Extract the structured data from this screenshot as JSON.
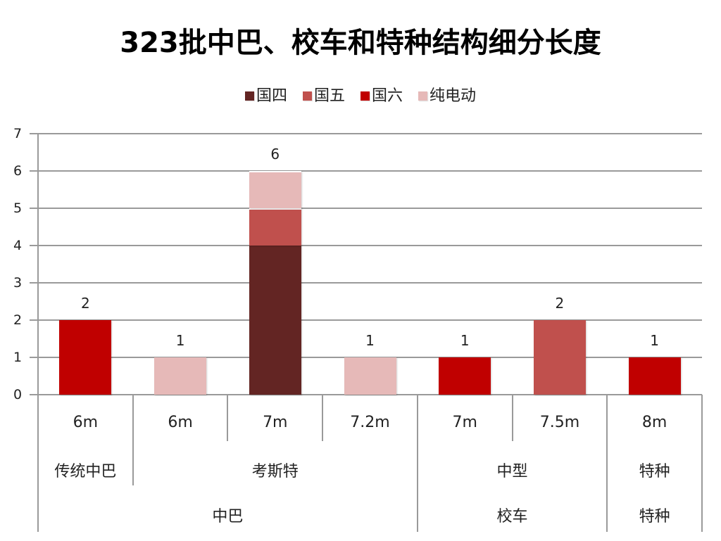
{
  "chart_data": {
    "type": "bar",
    "stacked": true,
    "title": "323批中巴、校车和特种结构细分长度",
    "xlabel": "",
    "ylabel": "",
    "ylim": [
      0,
      7
    ],
    "yticks": [
      "0",
      "1",
      "2",
      "3",
      "4",
      "5",
      "6",
      "7"
    ],
    "grid": true,
    "legend_position": "top",
    "categories": [
      "6m",
      "6m",
      "7m",
      "7.2m",
      "7m",
      "7.5m",
      "8m"
    ],
    "category_groups_level2": [
      {
        "label": "传统中巴",
        "span": 1
      },
      {
        "label": "考斯特",
        "span": 3
      },
      {
        "label": "中型",
        "span": 2
      },
      {
        "label": "特种",
        "span": 1
      }
    ],
    "category_groups_level3": [
      {
        "label": "中巴",
        "span": 4
      },
      {
        "label": "校车",
        "span": 2
      },
      {
        "label": "特种",
        "span": 1
      }
    ],
    "series": [
      {
        "name": "国四",
        "color": "#632523",
        "values": [
          0,
          0,
          4,
          0,
          0,
          0,
          0
        ]
      },
      {
        "name": "国五",
        "color": "#c0504d",
        "values": [
          0,
          0,
          1,
          0,
          0,
          2,
          0
        ]
      },
      {
        "name": "国六",
        "color": "#c00000",
        "values": [
          2,
          0,
          0,
          0,
          1,
          0,
          1
        ]
      },
      {
        "name": "纯电动",
        "color": "#e6b9b8",
        "values": [
          0,
          1,
          1,
          1,
          0,
          0,
          0
        ]
      }
    ],
    "totals": [
      "2",
      "1",
      "6",
      "1",
      "1",
      "2",
      "1"
    ]
  }
}
